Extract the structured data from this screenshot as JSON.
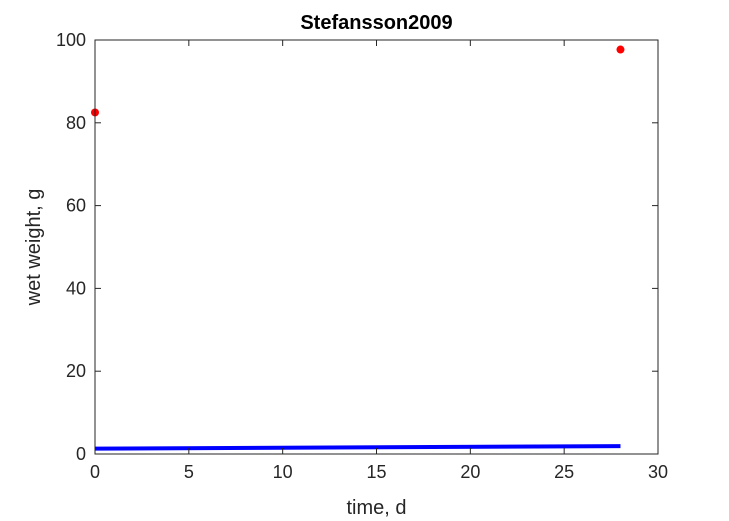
{
  "chart_data": {
    "type": "line",
    "title": "Stefansson2009",
    "xlabel": "time, d",
    "ylabel": "wet weight, g",
    "xlim": [
      0,
      30
    ],
    "ylim": [
      0,
      100
    ],
    "xticks": [
      0,
      5,
      10,
      15,
      20,
      25,
      30
    ],
    "yticks": [
      0,
      20,
      40,
      60,
      80,
      100
    ],
    "grid": false,
    "series": [
      {
        "kind": "scatter",
        "color": "#ff0000",
        "x": [
          0,
          28
        ],
        "y": [
          82.5,
          97.7
        ]
      },
      {
        "kind": "line",
        "color": "#0000ff",
        "x": [
          0,
          28
        ],
        "y": [
          1.3,
          1.9
        ]
      }
    ]
  }
}
